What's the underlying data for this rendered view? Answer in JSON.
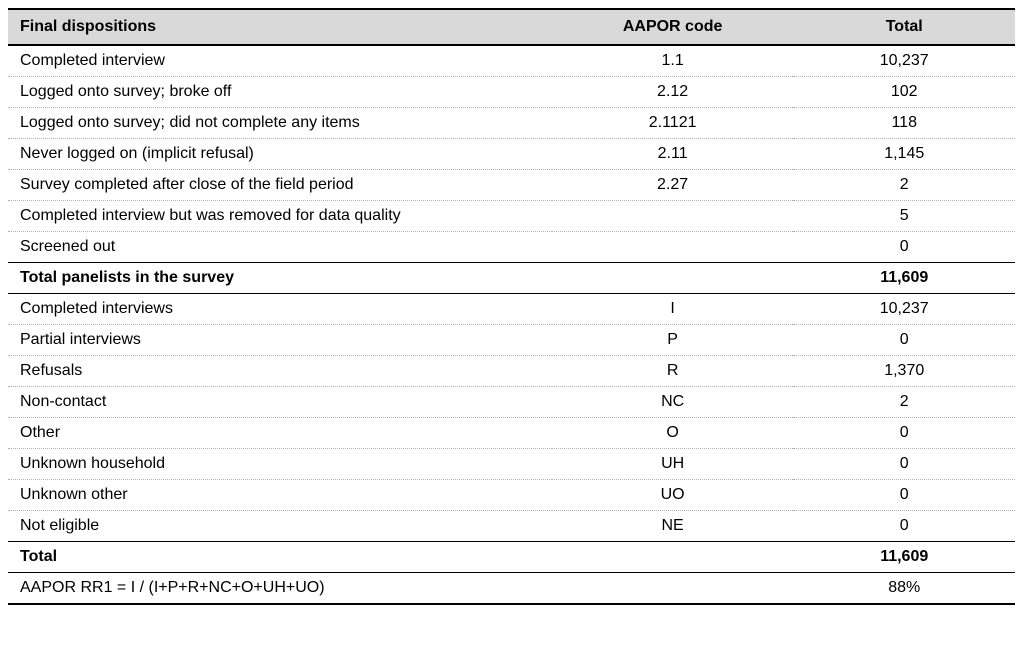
{
  "table": {
    "columns": {
      "dispositions": "Final dispositions",
      "code": "AAPOR code",
      "total": "Total"
    },
    "header_bg": "#d9d9d9",
    "border_color": "#000000",
    "dotted_color": "#b0b0b0",
    "font_family": "Franklin Gothic Book",
    "section1": [
      {
        "label": "Completed interview",
        "code": "1.1",
        "total": "10,237"
      },
      {
        "label": "Logged onto survey; broke off",
        "code": "2.12",
        "total": "102"
      },
      {
        "label": "Logged onto survey; did not complete any items",
        "code": "2.1121",
        "total": "118"
      },
      {
        "label": "Never logged on (implicit refusal)",
        "code": "2.11",
        "total": "1,145"
      },
      {
        "label": "Survey completed after close of the field period",
        "code": "2.27",
        "total": "2"
      },
      {
        "label": "Completed interview but was removed for data quality",
        "code": "",
        "total": "5"
      },
      {
        "label": "Screened out",
        "code": "",
        "total": "0"
      }
    ],
    "section1_total": {
      "label": "Total panelists in the survey",
      "code": "",
      "total": "11,609"
    },
    "section2": [
      {
        "label": "Completed interviews",
        "code": "I",
        "total": "10,237"
      },
      {
        "label": "Partial interviews",
        "code": "P",
        "total": "0"
      },
      {
        "label": "Refusals",
        "code": "R",
        "total": "1,370"
      },
      {
        "label": "Non-contact",
        "code": "NC",
        "total": "2"
      },
      {
        "label": "Other",
        "code": "O",
        "total": "0"
      },
      {
        "label": "Unknown household",
        "code": "UH",
        "total": "0"
      },
      {
        "label": "Unknown other",
        "code": "UO",
        "total": "0"
      },
      {
        "label": "Not eligible",
        "code": "NE",
        "total": "0"
      }
    ],
    "section2_total": {
      "label": "Total",
      "code": "",
      "total": "11,609"
    },
    "formula": {
      "label": "AAPOR RR1 = I / (I+P+R+NC+O+UH+UO)",
      "code": "",
      "total": "88%"
    }
  }
}
